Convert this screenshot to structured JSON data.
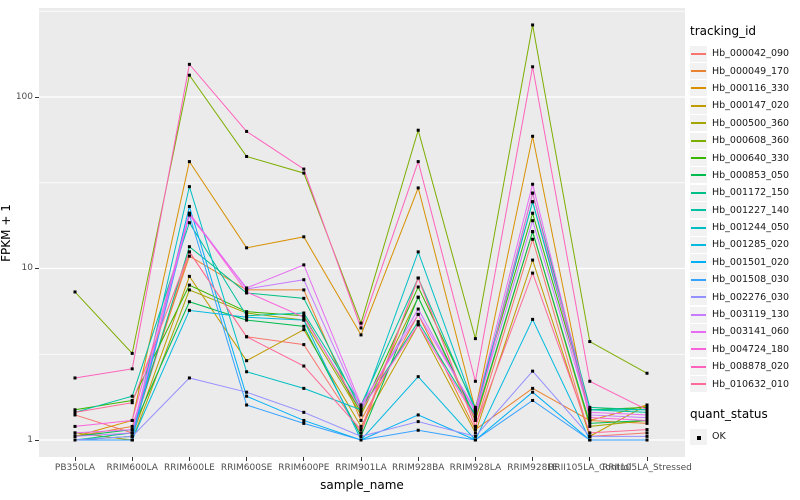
{
  "axes": {
    "x_title": "sample_name",
    "y_title": "FPKM + 1",
    "y_tick_labels": [
      "100",
      "10",
      "1"
    ],
    "y_tick_values": [
      100,
      10,
      1
    ]
  },
  "legend": {
    "color_title": "tracking_id",
    "shape_title": "quant_status",
    "shape_items": [
      {
        "label": "OK"
      }
    ]
  },
  "colors": {
    "panel_bg": "#EBEBEB",
    "grid": "#FFFFFF",
    "point": "#000000",
    "axis_text": "#4D4D4D",
    "tick": "#333333",
    "legend_key_bg": "#F2F2F2"
  },
  "chart_data": {
    "type": "line",
    "title": "",
    "xlabel": "sample_name",
    "ylabel": "FPKM + 1",
    "y_scale": "log10",
    "ylim": [
      0.79,
      330
    ],
    "grid": true,
    "legend_position": "right",
    "point_shape": "small black square (quant_status OK)",
    "categories": [
      "PB350LA",
      "RRIM600LA",
      "RRIM600LE",
      "RRIM600SE",
      "RRIM600PE",
      "RRIM901LA",
      "RRIM928BA",
      "RRIM928LA",
      "RRIM928LE",
      "RRII105LA_Control",
      "RRII105LA_Stressed"
    ],
    "series": [
      {
        "name": "Hb_000042_090",
        "color": "#F8766D",
        "values": [
          1.4,
          1.1,
          12.5,
          4.0,
          3.6,
          1.1,
          8.8,
          1.2,
          14.8,
          1.05,
          1.1
        ]
      },
      {
        "name": "Hb_000049_170",
        "color": "#EA8331",
        "values": [
          1.05,
          1.2,
          11.8,
          7.5,
          7.5,
          1.3,
          5.4,
          1.15,
          2.0,
          1.3,
          1.25
        ]
      },
      {
        "name": "Hb_000116_330",
        "color": "#D89000",
        "values": [
          1.05,
          1.3,
          42.0,
          13.2,
          15.3,
          4.1,
          29.5,
          1.5,
          59.0,
          1.3,
          1.6
        ]
      },
      {
        "name": "Hb_000147_020",
        "color": "#C09B00",
        "values": [
          1.0,
          1.05,
          9.0,
          2.9,
          4.4,
          1.2,
          4.7,
          1.1,
          11.2,
          1.05,
          1.6
        ]
      },
      {
        "name": "Hb_000500_360",
        "color": "#A3A500",
        "values": [
          1.1,
          1.0,
          7.5,
          5.5,
          5.0,
          1.4,
          6.8,
          1.3,
          16.4,
          1.2,
          1.3
        ]
      },
      {
        "name": "Hb_000608_360",
        "color": "#7CAE00",
        "values": [
          7.3,
          3.2,
          134.0,
          45.0,
          36.0,
          4.8,
          64.0,
          3.9,
          263.0,
          3.75,
          2.45
        ]
      },
      {
        "name": "Hb_000640_330",
        "color": "#39B600",
        "values": [
          1.5,
          1.7,
          8.0,
          5.6,
          5.3,
          1.45,
          7.8,
          1.55,
          21.0,
          1.5,
          1.55
        ]
      },
      {
        "name": "Hb_000853_050",
        "color": "#00BB4E",
        "values": [
          1.05,
          1.15,
          6.4,
          5.0,
          4.6,
          1.05,
          6.8,
          1.35,
          16.4,
          1.25,
          1.3
        ]
      },
      {
        "name": "Hb_001172_150",
        "color": "#00C087",
        "values": [
          1.0,
          1.1,
          13.4,
          7.2,
          6.7,
          1.5,
          4.9,
          1.4,
          27.5,
          1.55,
          1.5
        ]
      },
      {
        "name": "Hb_001227_140",
        "color": "#00C1A3",
        "values": [
          1.45,
          1.8,
          18.5,
          5.3,
          5.5,
          1.6,
          8.8,
          1.5,
          24.5,
          1.5,
          1.45
        ]
      },
      {
        "name": "Hb_001244_050",
        "color": "#00BFC4",
        "values": [
          1.0,
          1.05,
          30.0,
          2.5,
          2.0,
          1.5,
          12.5,
          1.5,
          24.5,
          1.5,
          1.5
        ]
      },
      {
        "name": "Hb_001285_020",
        "color": "#00BAE0",
        "values": [
          1.0,
          1.0,
          5.7,
          5.2,
          5.0,
          1.0,
          2.34,
          1.0,
          5.05,
          1.0,
          1.0
        ]
      },
      {
        "name": "Hb_001501_020",
        "color": "#00B0F6",
        "values": [
          1.0,
          1.0,
          23.0,
          1.8,
          1.3,
          1.0,
          1.4,
          1.0,
          1.9,
          1.0,
          1.0
        ]
      },
      {
        "name": "Hb_001508_030",
        "color": "#35A2FF",
        "values": [
          1.0,
          1.0,
          20.5,
          1.6,
          1.25,
          1.0,
          1.14,
          1.0,
          1.7,
          1.0,
          1.0
        ]
      },
      {
        "name": "Hb_002276_030",
        "color": "#9590FF",
        "values": [
          1.0,
          1.05,
          2.3,
          1.9,
          1.45,
          1.05,
          1.28,
          1.05,
          2.52,
          1.05,
          1.05
        ]
      },
      {
        "name": "Hb_003119_130",
        "color": "#C77CFF",
        "values": [
          1.05,
          1.1,
          21.0,
          7.6,
          8.6,
          1.55,
          5.8,
          1.45,
          19.0,
          1.4,
          1.35
        ]
      },
      {
        "name": "Hb_003141_060",
        "color": "#E76BF3",
        "values": [
          1.1,
          1.15,
          20.5,
          7.7,
          10.5,
          1.6,
          5.4,
          1.5,
          31.0,
          1.45,
          1.4
        ]
      },
      {
        "name": "Hb_004724_180",
        "color": "#FA62DB",
        "values": [
          1.2,
          1.3,
          21.0,
          7.3,
          5.2,
          1.5,
          4.7,
          1.35,
          27.5,
          1.35,
          1.3
        ]
      },
      {
        "name": "Hb_008878_020",
        "color": "#FF62BC",
        "values": [
          2.3,
          2.6,
          155.0,
          63.0,
          38.0,
          4.5,
          42.0,
          2.2,
          150.0,
          2.2,
          1.5
        ]
      },
      {
        "name": "Hb_010632_010",
        "color": "#FF6A98",
        "values": [
          1.45,
          1.65,
          12.5,
          4.0,
          2.7,
          1.15,
          8.8,
          1.2,
          9.4,
          1.1,
          1.15
        ]
      }
    ]
  }
}
